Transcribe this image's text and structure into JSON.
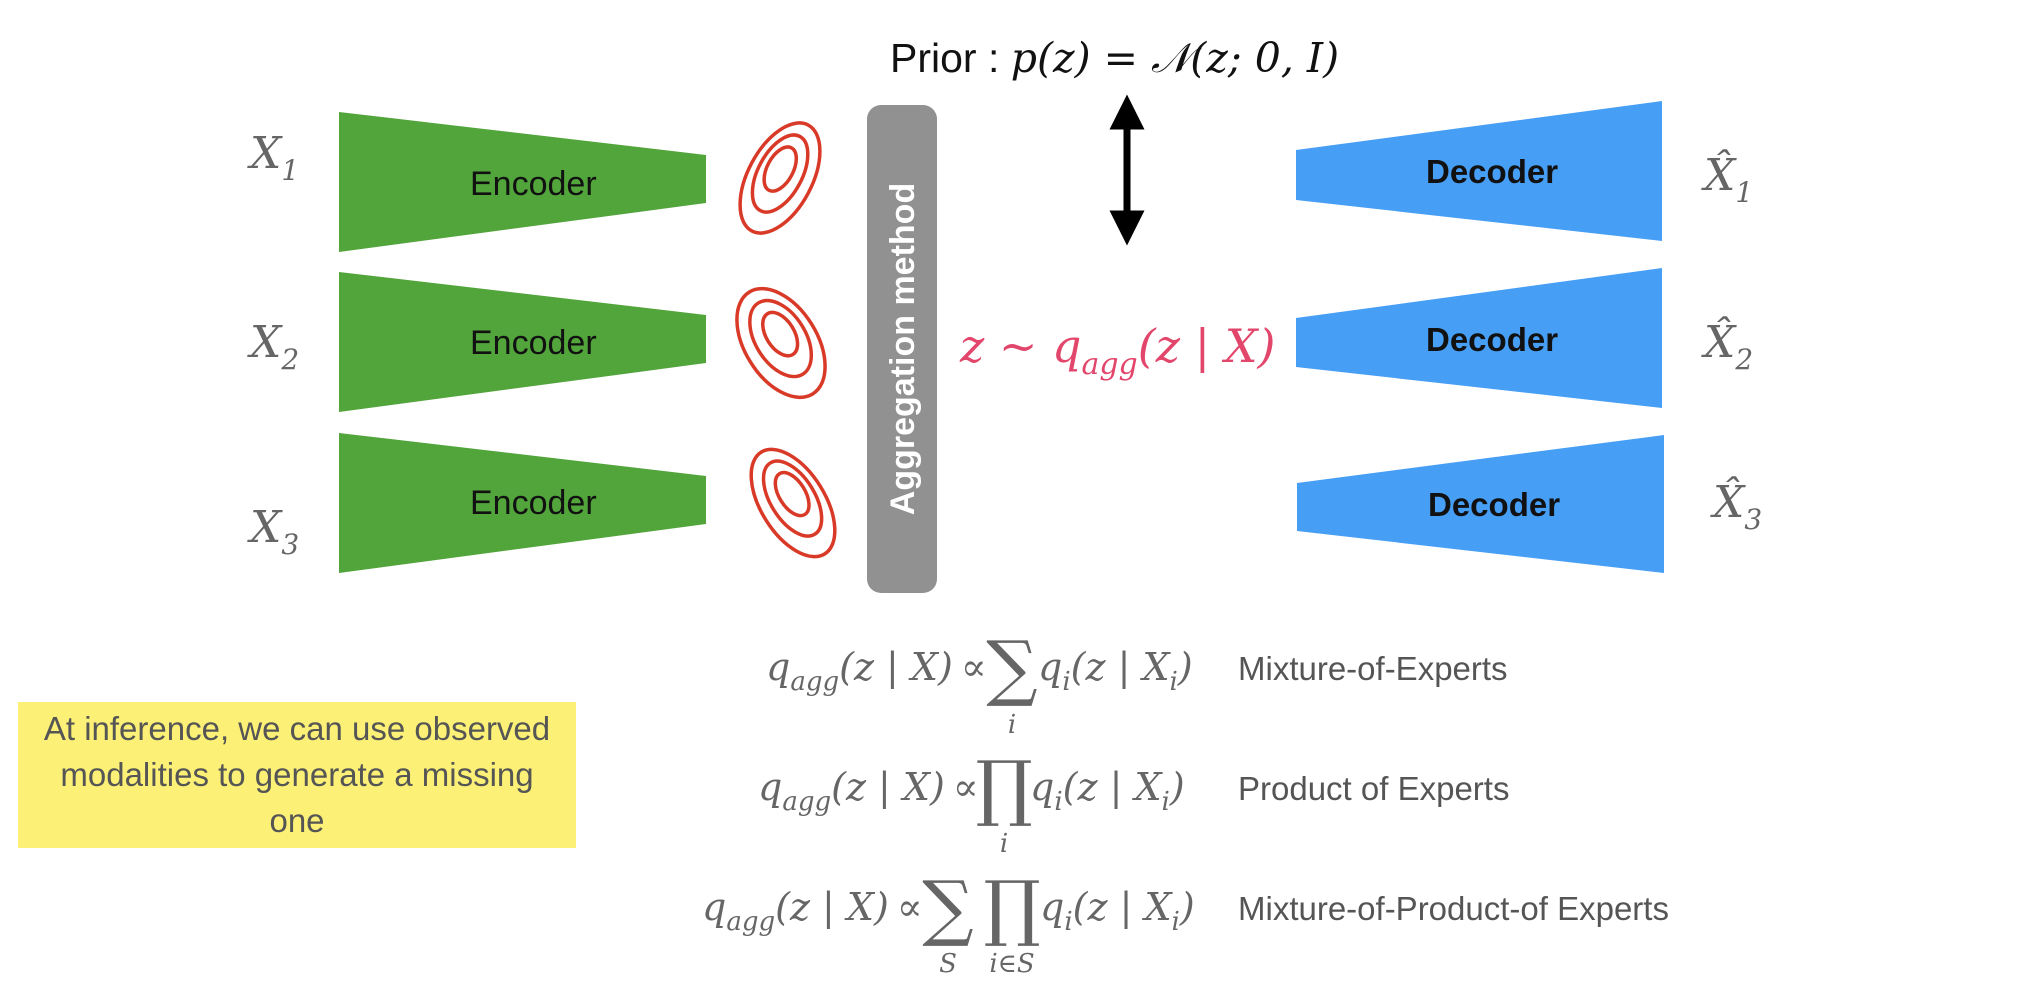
{
  "colors": {
    "encoder": "#52a53b",
    "decoder": "#479ef5",
    "aggregator": "#919191",
    "ellipse": "#d93a28",
    "latent": "#e2466b",
    "math": "#666666",
    "note_bg": "#fcf176"
  },
  "prior": {
    "label": "Prior : ",
    "formula": "p(z) = 𝒩(z; 0, I)"
  },
  "aggregator": {
    "label": "Aggregation method"
  },
  "latent": {
    "prefix": "z ~ q",
    "sub": "agg",
    "suffix": "(z | X)"
  },
  "inputs": [
    {
      "base": "X",
      "sub": "1"
    },
    {
      "base": "X",
      "sub": "2"
    },
    {
      "base": "X",
      "sub": "3"
    }
  ],
  "outputs": [
    {
      "base": "X̂",
      "sub": "1"
    },
    {
      "base": "X̂",
      "sub": "2"
    },
    {
      "base": "X̂",
      "sub": "3"
    }
  ],
  "encoders": [
    {
      "label": "Encoder"
    },
    {
      "label": "Encoder"
    },
    {
      "label": "Encoder"
    }
  ],
  "decoders": [
    {
      "label": "Decoder"
    },
    {
      "label": "Decoder"
    },
    {
      "label": "Decoder"
    }
  ],
  "formulas": {
    "lhs": {
      "q": "q",
      "sub": "agg",
      "arg": "(z | X)",
      "prop": "∝"
    },
    "rhs": {
      "q": "q",
      "sub": "i",
      "arg": "(z | X",
      "arg_sub": "i",
      "close": ")"
    },
    "sum": "∑",
    "prod": "∏",
    "idx_i": "i",
    "idx_S": "S",
    "idx_iS": "i∈S",
    "labels": {
      "moe": "Mixture-of-Experts",
      "poe": "Product of Experts",
      "mopoe": "Mixture-of-Product-of Experts"
    }
  },
  "note": {
    "text": "At inference, we can use observed modalities to generate a missing one"
  }
}
